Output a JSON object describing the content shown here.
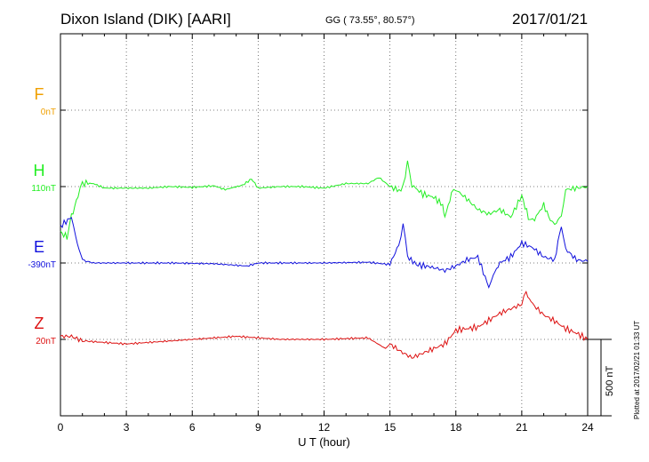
{
  "header": {
    "station": "Dixon Island (DIK)  [AARI]",
    "coords": "GG ( 73.55°,  80.57°)",
    "date": "2017/01/21"
  },
  "plotted_note": "Plotted at 2017/02/21 01:33 UT",
  "scale_bar_label": "500 nT",
  "chart_data": {
    "type": "line",
    "xlabel": "U T (hour)",
    "xlim": [
      0,
      24
    ],
    "xticks": [
      "0",
      "3",
      "6",
      "9",
      "12",
      "15",
      "18",
      "21",
      "24"
    ],
    "grid": "dotted",
    "units_per_band_nT": 500,
    "series": [
      {
        "name": "F",
        "offset_label": "0nT",
        "color": "#f0a000",
        "values": []
      },
      {
        "name": "H",
        "offset_label": "110nT",
        "color": "#22ee22",
        "values": [
          [
            0,
            -300
          ],
          [
            0.3,
            -330
          ],
          [
            0.5,
            -200
          ],
          [
            0.8,
            -60
          ],
          [
            1,
            20
          ],
          [
            1.5,
            20
          ],
          [
            2,
            -10
          ],
          [
            3,
            -10
          ],
          [
            4,
            -10
          ],
          [
            5,
            0
          ],
          [
            6,
            -5
          ],
          [
            7,
            5
          ],
          [
            7.5,
            -20
          ],
          [
            8.3,
            10
          ],
          [
            8.7,
            50
          ],
          [
            9,
            -10
          ],
          [
            10,
            0
          ],
          [
            11,
            0
          ],
          [
            12,
            -10
          ],
          [
            13,
            20
          ],
          [
            14,
            20
          ],
          [
            14.5,
            60
          ],
          [
            15,
            0
          ],
          [
            15.5,
            -30
          ],
          [
            15.7,
            60
          ],
          [
            15.8,
            160
          ],
          [
            16,
            10
          ],
          [
            16.5,
            -50
          ],
          [
            17,
            -70
          ],
          [
            17.4,
            -120
          ],
          [
            17.5,
            -200
          ],
          [
            17.8,
            -50
          ],
          [
            18,
            -20
          ],
          [
            18.5,
            -80
          ],
          [
            19,
            -150
          ],
          [
            19.5,
            -180
          ],
          [
            20,
            -150
          ],
          [
            20.5,
            -200
          ],
          [
            21,
            -60
          ],
          [
            21.3,
            -200
          ],
          [
            21.5,
            -230
          ],
          [
            22,
            -120
          ],
          [
            22.3,
            -220
          ],
          [
            22.5,
            -250
          ],
          [
            22.8,
            -190
          ],
          [
            23,
            -20
          ],
          [
            23.5,
            -10
          ],
          [
            24,
            0
          ]
        ]
      },
      {
        "name": "E",
        "offset_label": "-390nT",
        "color": "#1010dd",
        "values": [
          [
            0,
            240
          ],
          [
            0.5,
            300
          ],
          [
            0.7,
            160
          ],
          [
            1,
            20
          ],
          [
            1.5,
            0
          ],
          [
            3,
            0
          ],
          [
            5,
            0
          ],
          [
            7,
            -5
          ],
          [
            8.5,
            -20
          ],
          [
            9,
            0
          ],
          [
            12,
            0
          ],
          [
            14,
            5
          ],
          [
            15,
            -10
          ],
          [
            15.4,
            120
          ],
          [
            15.6,
            260
          ],
          [
            15.8,
            40
          ],
          [
            16.2,
            -10
          ],
          [
            17,
            -30
          ],
          [
            17.5,
            -50
          ],
          [
            18,
            -20
          ],
          [
            18.5,
            20
          ],
          [
            19,
            40
          ],
          [
            19.5,
            -160
          ],
          [
            19.7,
            -80
          ],
          [
            20,
            0
          ],
          [
            20.5,
            40
          ],
          [
            21,
            130
          ],
          [
            21.5,
            100
          ],
          [
            22,
            40
          ],
          [
            22.5,
            20
          ],
          [
            22.8,
            250
          ],
          [
            23,
            90
          ],
          [
            23.5,
            20
          ],
          [
            24,
            10
          ]
        ]
      },
      {
        "name": "Z",
        "offset_label": "20nT",
        "color": "#dd1111",
        "values": [
          [
            0,
            20
          ],
          [
            0.5,
            20
          ],
          [
            1,
            -10
          ],
          [
            2,
            -20
          ],
          [
            3,
            -30
          ],
          [
            5,
            -10
          ],
          [
            7,
            10
          ],
          [
            8,
            20
          ],
          [
            9,
            10
          ],
          [
            10,
            0
          ],
          [
            12,
            0
          ],
          [
            14,
            10
          ],
          [
            14.8,
            -60
          ],
          [
            15,
            -30
          ],
          [
            15.5,
            -80
          ],
          [
            16,
            -120
          ],
          [
            17,
            -60
          ],
          [
            17.5,
            -30
          ],
          [
            18,
            60
          ],
          [
            19,
            80
          ],
          [
            20,
            170
          ],
          [
            21,
            230
          ],
          [
            21.2,
            300
          ],
          [
            21.5,
            230
          ],
          [
            22,
            160
          ],
          [
            22.5,
            120
          ],
          [
            23,
            70
          ],
          [
            23.5,
            40
          ],
          [
            24,
            0
          ]
        ]
      }
    ]
  }
}
